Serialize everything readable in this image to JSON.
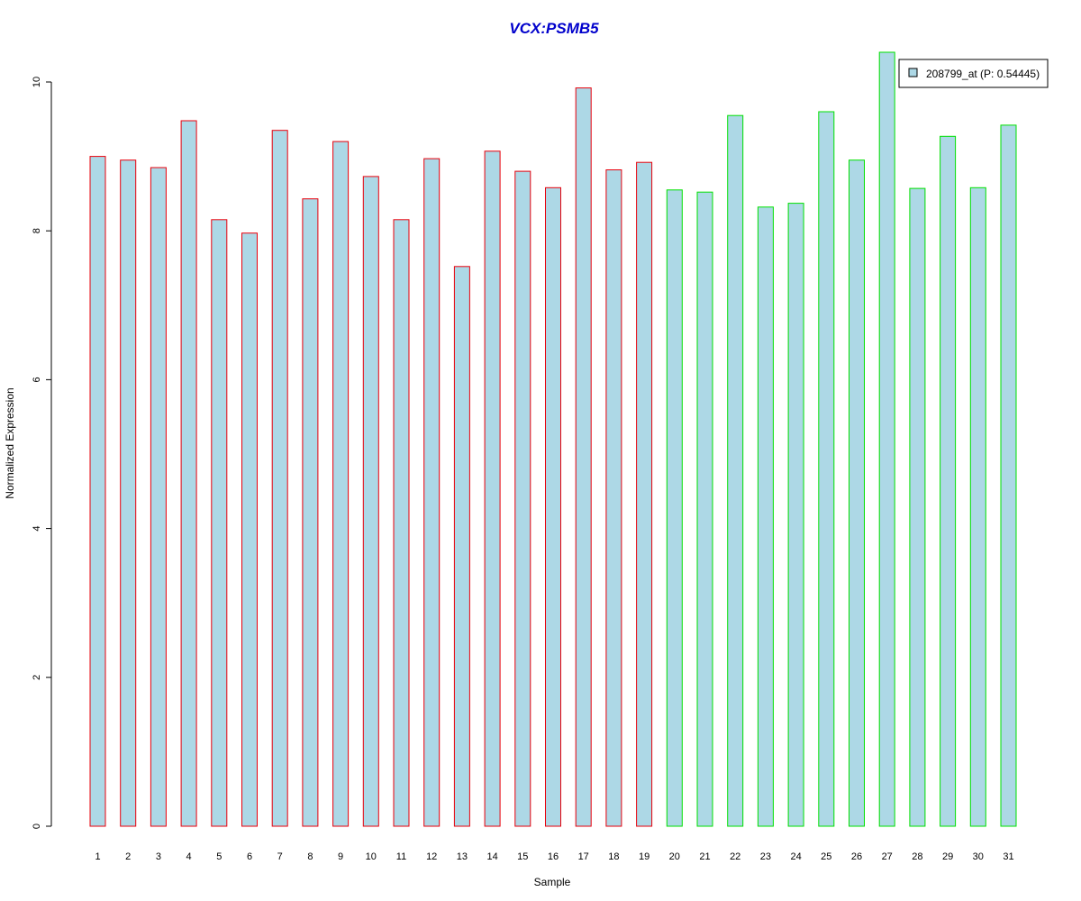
{
  "chart_data": {
    "type": "bar",
    "title": "VCX:PSMB5",
    "xlabel": "Sample",
    "ylabel": "Normalized Expression",
    "categories": [
      "1",
      "2",
      "3",
      "4",
      "5",
      "6",
      "7",
      "8",
      "9",
      "10",
      "11",
      "12",
      "13",
      "14",
      "15",
      "16",
      "17",
      "18",
      "19",
      "20",
      "21",
      "22",
      "23",
      "24",
      "25",
      "26",
      "27",
      "28",
      "29",
      "30",
      "31"
    ],
    "series": [
      {
        "name": "208799_at (P: 0.54445)",
        "values": [
          9.0,
          8.95,
          8.85,
          9.48,
          8.15,
          7.97,
          9.35,
          8.43,
          9.2,
          8.73,
          8.15,
          8.97,
          7.52,
          9.07,
          8.8,
          8.58,
          9.92,
          8.82,
          8.92,
          8.55,
          8.52,
          9.55,
          8.32,
          8.37,
          9.6,
          8.95,
          10.4,
          8.57,
          9.27,
          8.58,
          9.42
        ]
      }
    ],
    "groups": [
      {
        "samples": "1-19",
        "border_color": "#e8000b"
      },
      {
        "samples": "20-31",
        "border_color": "#00e000"
      }
    ],
    "fill_color": "#add8e6",
    "ylim": [
      0,
      10.4
    ],
    "yticks": [
      0,
      2,
      4,
      6,
      8,
      10
    ],
    "grid": false,
    "legend_position": "top-right"
  }
}
